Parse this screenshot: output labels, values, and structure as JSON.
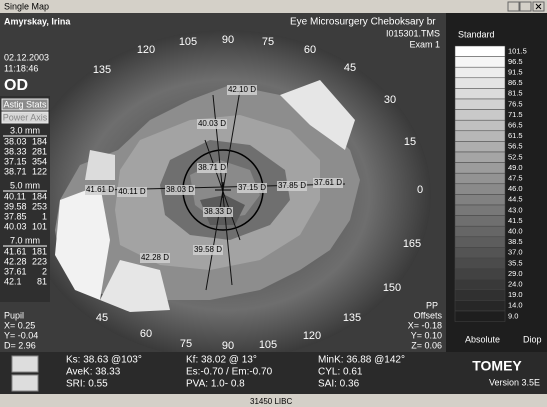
{
  "window": {
    "title": "Single Map"
  },
  "header": {
    "patient": "Amyrskay, Irina",
    "date": "02.12.2003",
    "time": "11:18:46",
    "eye": "OD",
    "clinic": "Eye Microsurgery Cheboksary br",
    "file": "I015301.TMS",
    "exam": "Exam 1"
  },
  "astig": {
    "buttons": [
      "Astig Stats",
      "Power Axis"
    ],
    "groups": [
      {
        "zone": "3.0 mm",
        "rows": [
          [
            38.03,
            184
          ],
          [
            38.33,
            281
          ],
          [
            37.15,
            354
          ],
          [
            38.71,
            122
          ]
        ]
      },
      {
        "zone": "5.0 mm",
        "rows": [
          [
            40.11,
            184
          ],
          [
            39.58,
            253
          ],
          [
            37.85,
            1
          ],
          [
            40.03,
            101
          ]
        ]
      },
      {
        "zone": "7.0 mm",
        "rows": [
          [
            41.61,
            181
          ],
          [
            42.28,
            223
          ],
          [
            37.61,
            2
          ],
          [
            42.1,
            81
          ]
        ]
      }
    ]
  },
  "pupil": {
    "title": "Pupil",
    "lines": [
      "X= 0.25",
      "Y= -0.04",
      "D= 2.96"
    ]
  },
  "offsets": {
    "title": "PP",
    "subtitle": "Offsets",
    "lines": [
      "X= -0.18",
      "Y= 0.10",
      "Z= 0.06"
    ]
  },
  "axis_labels": [
    135,
    120,
    105,
    90,
    75,
    60,
    45,
    30,
    15,
    0,
    165,
    150,
    135,
    120,
    105,
    90,
    75,
    60,
    45
  ],
  "map_labels": [
    "42.10 D",
    "40.03 D",
    "38.71 D",
    "41.61 D",
    "40.11 D",
    "38.03 D",
    "37.15 D",
    "37.85 D",
    "37.61 D",
    "38.33 D",
    "39.58 D",
    "42.28 D"
  ],
  "scale": {
    "title": "Standard",
    "values": [
      "101.5",
      "96.5",
      "91.5",
      "86.5",
      "81.5",
      "76.5",
      "71.5",
      "66.5",
      "61.5",
      "56.5",
      "52.5",
      "49.0",
      "47.5",
      "46.0",
      "44.5",
      "43.0",
      "41.5",
      "40.0",
      "38.5",
      "37.0",
      "35.5",
      "29.0",
      "24.0",
      "19.0",
      "14.0",
      "9.0"
    ],
    "footer": [
      "Absolute",
      "Diop"
    ]
  },
  "stats": {
    "col1": [
      "Ks: 38.63 @103°",
      "AveK: 38.33",
      "SRI: 0.55"
    ],
    "col2": [
      "Kf: 38.02 @ 13°",
      "Es:-0.70 / Em:-0.70",
      "PVA:  1.0-  0.8"
    ],
    "col3": [
      "MinK: 36.88 @142°",
      "CYL: 0.61",
      "SAI: 0.36"
    ],
    "brand": "TOMEY",
    "version": "Version 3.5E"
  },
  "status": "31450  LIBC"
}
